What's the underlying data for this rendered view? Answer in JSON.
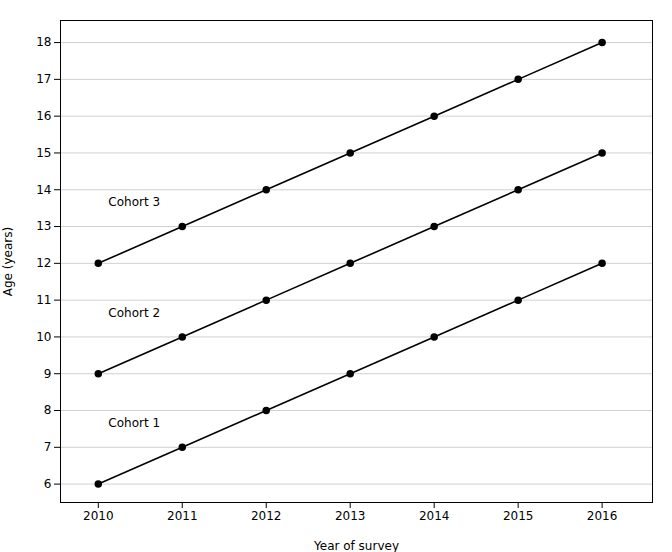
{
  "chart_data": {
    "type": "line",
    "x": [
      2010,
      2011,
      2012,
      2013,
      2014,
      2015,
      2016
    ],
    "series": [
      {
        "name": "Cohort 1",
        "values": [
          6,
          7,
          8,
          9,
          10,
          11,
          12
        ]
      },
      {
        "name": "Cohort 2",
        "values": [
          9,
          10,
          11,
          12,
          13,
          14,
          15
        ]
      },
      {
        "name": "Cohort 3",
        "values": [
          12,
          13,
          14,
          15,
          16,
          17,
          18
        ]
      }
    ],
    "annotations": [
      {
        "text": "Cohort 1",
        "x": 2010.12,
        "y": 7.55
      },
      {
        "text": "Cohort 2",
        "x": 2010.12,
        "y": 10.55
      },
      {
        "text": "Cohort 3",
        "x": 2010.12,
        "y": 13.55
      }
    ],
    "xlabel": "Year of survey",
    "ylabel": "Age (years)",
    "xlim": [
      2009.55,
      2016.6
    ],
    "ylim": [
      5.5,
      18.6
    ],
    "xticks": [
      2010,
      2011,
      2012,
      2013,
      2014,
      2015,
      2016
    ],
    "yticks": [
      6,
      7,
      8,
      9,
      10,
      11,
      12,
      13,
      14,
      15,
      16,
      17,
      18
    ],
    "color": "#000000",
    "marker": "circle",
    "grid": "y"
  }
}
